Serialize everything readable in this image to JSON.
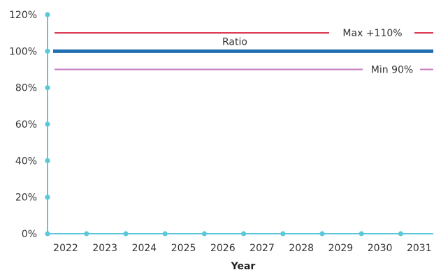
{
  "chart_data": {
    "type": "line",
    "title": "",
    "xlabel": "Year",
    "ylabel": "",
    "x": [
      2022,
      2023,
      2024,
      2025,
      2026,
      2027,
      2028,
      2029,
      2030,
      2031
    ],
    "ylim": [
      0,
      120
    ],
    "y_ticks": [
      "0%",
      "20%",
      "40%",
      "60%",
      "80%",
      "100%",
      "120%"
    ],
    "y_tick_values": [
      0,
      20,
      40,
      60,
      80,
      100,
      120
    ],
    "x_tick_labels": [
      "2022",
      "2023",
      "2024",
      "2025",
      "2026",
      "2027",
      "2028",
      "2029",
      "2030",
      "2031"
    ],
    "grid": false,
    "legend": "none",
    "series": [
      {
        "name": "Ratio",
        "values": [
          100,
          100,
          100,
          100,
          100,
          100,
          100,
          100,
          100,
          100
        ],
        "color": "#1f6fb2"
      },
      {
        "name": "Max +110%",
        "values": [
          110,
          110,
          110,
          110,
          110,
          110,
          110,
          110,
          110,
          110
        ],
        "color": "#d7263d"
      },
      {
        "name": "Min 90%",
        "values": [
          90,
          90,
          90,
          90,
          90,
          90,
          90,
          90,
          90,
          90
        ],
        "color": "#c67bc1"
      }
    ],
    "axis_color": "#5bc8d8"
  }
}
